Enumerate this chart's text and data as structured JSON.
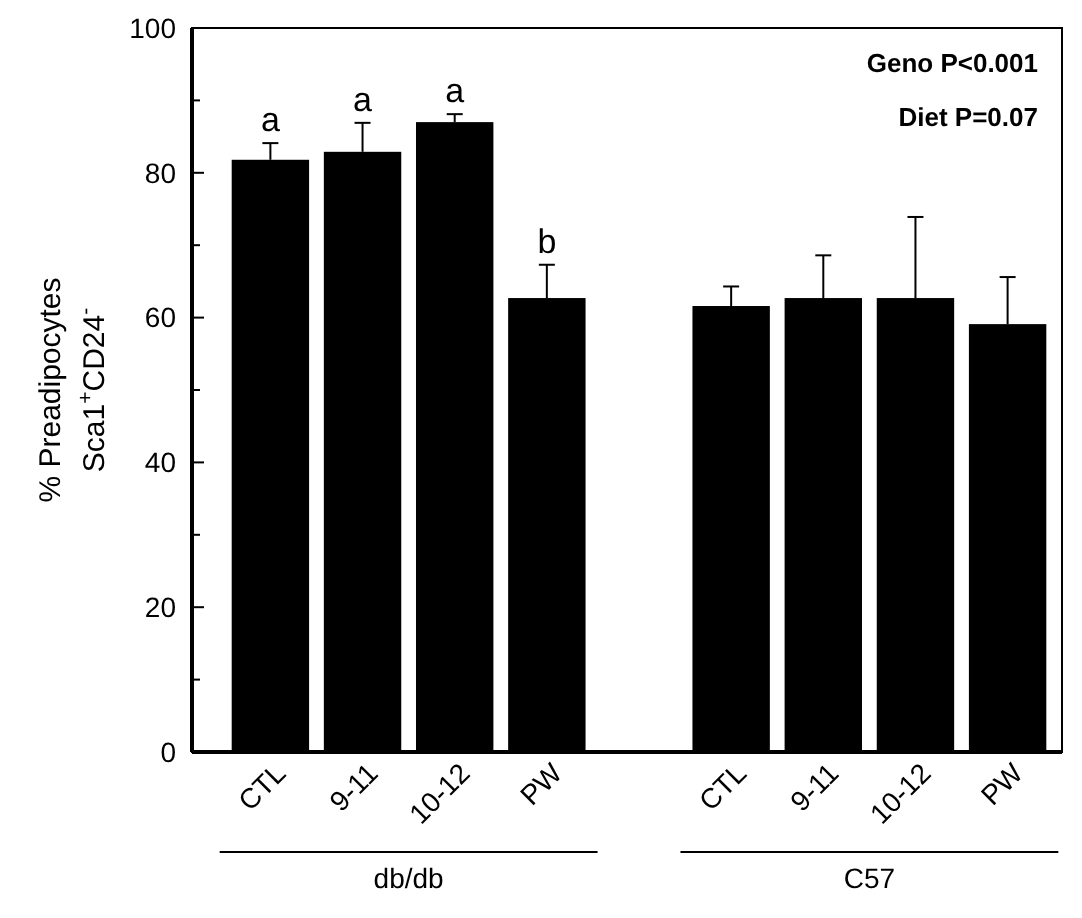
{
  "chart_data": {
    "type": "bar",
    "ylabel": "% Preadipocytes\nSca1$^{+}$CD24$^{-}$",
    "categories": [
      "CTL",
      "9-11",
      "10-12",
      "PW",
      null,
      "CTL",
      "9-11",
      "10-12",
      "PW"
    ],
    "values": [
      81.8,
      82.9,
      87.0,
      62.7,
      null,
      61.6,
      62.7,
      62.7,
      59.1
    ],
    "errors": [
      [
        81.8,
        84.1
      ],
      [
        82.9,
        86.9
      ],
      [
        87.0,
        88.1
      ],
      [
        62.7,
        67.3
      ],
      null,
      [
        61.6,
        64.3
      ],
      [
        62.7,
        68.6
      ],
      [
        62.7,
        73.9
      ],
      [
        59.1,
        65.6
      ]
    ],
    "value_labels": [
      "a",
      "a",
      "a",
      "b",
      null,
      null,
      null,
      null,
      null
    ],
    "color": "#000000",
    "ylim": [
      0,
      100
    ],
    "yticks": [
      0,
      {
        "value": 10,
        "label": null
      },
      20,
      {
        "value": 30,
        "label": null
      },
      40,
      {
        "value": 50,
        "label": null
      },
      60,
      {
        "value": 70,
        "label": null
      },
      80,
      {
        "value": 90,
        "label": null
      },
      100
    ],
    "annotations": [
      "db/db",
      "C57",
      "Geno P<0.001",
      "Diet P=0.07"
    ]
  }
}
